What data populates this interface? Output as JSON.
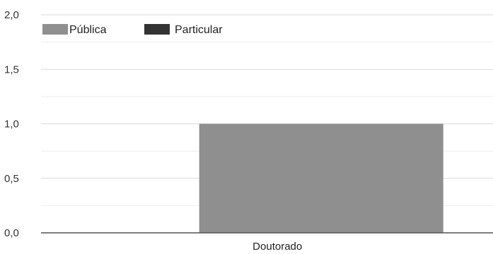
{
  "chart_data": {
    "type": "bar",
    "categories": [
      "Doutorado"
    ],
    "series": [
      {
        "name": "Pública",
        "color": "#8f8f8f",
        "values": [
          1.0
        ]
      },
      {
        "name": "Particular",
        "color": "#333333",
        "values": [
          0.0
        ]
      }
    ],
    "ylim": [
      0,
      2
    ],
    "yticks": [
      "0,0",
      "0,5",
      "1,0",
      "1,5",
      "2,0"
    ],
    "grid": true,
    "legend_position": "top-left"
  }
}
